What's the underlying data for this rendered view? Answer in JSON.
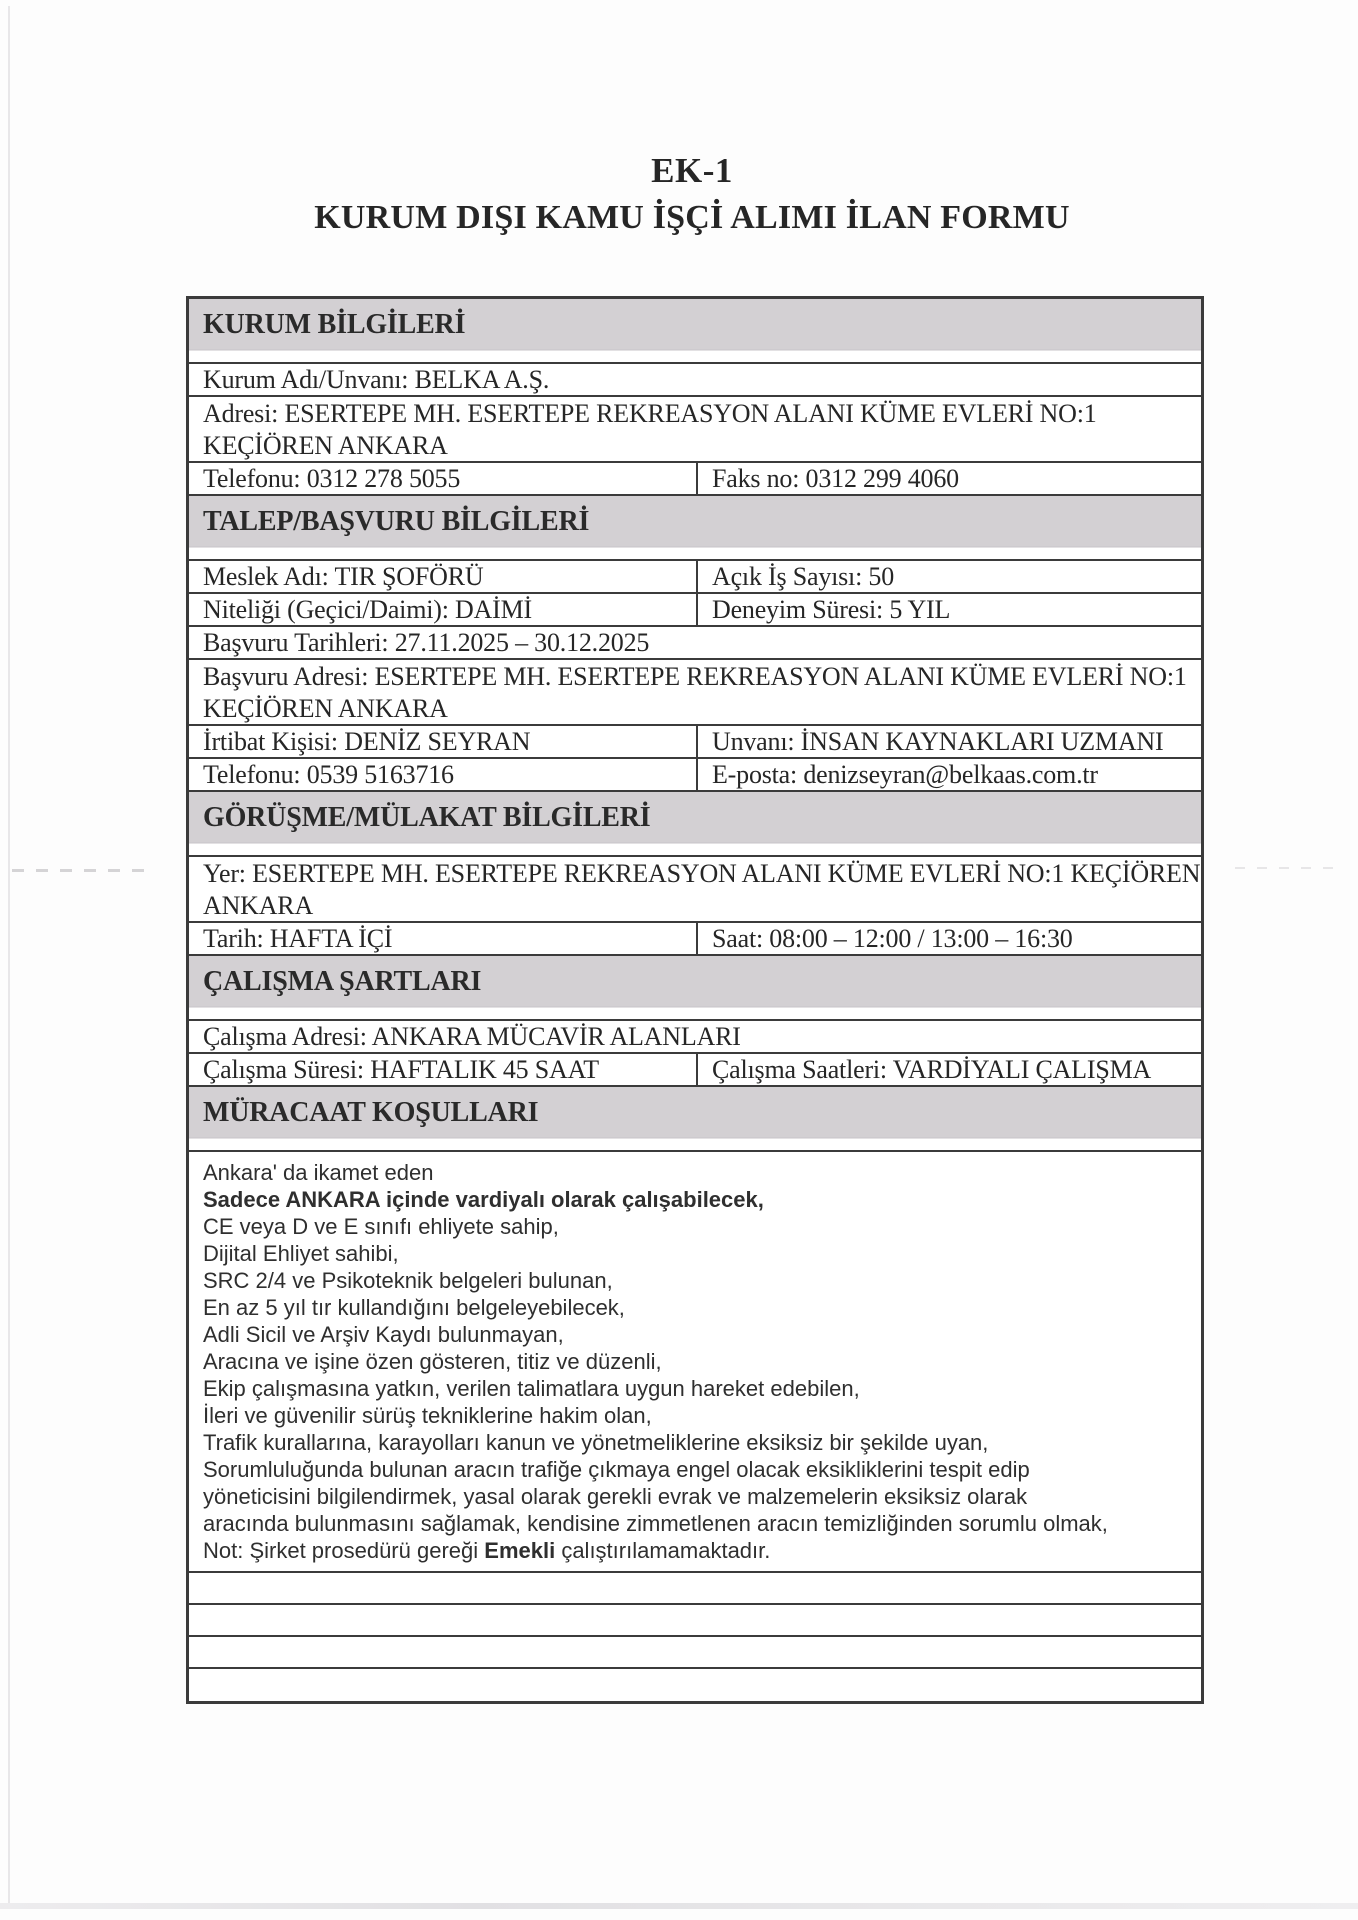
{
  "header": {
    "doc_label": "EK-1",
    "doc_title": "KURUM DIŞI KAMU İŞÇİ ALIMI İLAN FORMU"
  },
  "colors": {
    "header_bg": "#d3d0d3",
    "border": "#3b3b3b",
    "text": "#262626",
    "req_text": "#2f2f2f",
    "page_bg": "#fdfdfd"
  },
  "table": {
    "rows": [
      {
        "type": "header",
        "text": "KURUM BİLGİLERİ"
      },
      {
        "type": "single",
        "text": "Kurum Adı/Unvanı: BELKA A.Ş."
      },
      {
        "type": "single",
        "lines": 2,
        "line1": "Adresi: ESERTEPE MH. ESERTEPE REKREASYON ALANI KÜME EVLERİ NO:1",
        "line2": "KEÇİÖREN ANKARA"
      },
      {
        "type": "split",
        "left": "Telefonu: 0312 278 5055",
        "right": "Faks no: 0312 299 4060"
      },
      {
        "type": "header",
        "text": "TALEP/BAŞVURU BİLGİLERİ"
      },
      {
        "type": "split",
        "left": "Meslek Adı: TIR ŞOFÖRÜ",
        "right": "Açık İş Sayısı: 50"
      },
      {
        "type": "split",
        "left": "Niteliği (Geçici/Daimi): DAİMİ",
        "right": "Deneyim Süresi: 5 YIL"
      },
      {
        "type": "single",
        "text": "Başvuru Tarihleri: 27.11.2025 – 30.12.2025"
      },
      {
        "type": "single",
        "lines": 2,
        "line1": "Başvuru Adresi: ESERTEPE MH. ESERTEPE REKREASYON ALANI KÜME EVLERİ NO:1",
        "line2": "KEÇİÖREN ANKARA"
      },
      {
        "type": "split",
        "left": "İrtibat Kişisi: DENİZ SEYRAN",
        "right": "Unvanı: İNSAN KAYNAKLARI UZMANI"
      },
      {
        "type": "split",
        "left": "Telefonu: 0539 5163716",
        "right": "E-posta: denizseyran@belkaas.com.tr"
      },
      {
        "type": "header",
        "text": "GÖRÜŞME/MÜLAKAT BİLGİLERİ"
      },
      {
        "type": "single",
        "lines": 2,
        "line1": "Yer: ESERTEPE MH. ESERTEPE REKREASYON ALANI KÜME EVLERİ NO:1 KEÇİÖREN",
        "line2": "ANKARA"
      },
      {
        "type": "split",
        "left": "Tarih: HAFTA İÇİ",
        "right": "Saat: 08:00 – 12:00 / 13:00 – 16:30"
      },
      {
        "type": "header",
        "text": "ÇALIŞMA ŞARTLARI"
      },
      {
        "type": "single",
        "text": "Çalışma Adresi: ANKARA MÜCAVİR ALANLARI"
      },
      {
        "type": "split",
        "left": "Çalışma Süresi: HAFTALIK 45 SAAT",
        "right": "Çalışma Saatleri: VARDİYALI ÇALIŞMA"
      },
      {
        "type": "header",
        "text": "MÜRACAAT KOŞULLARI"
      },
      {
        "type": "requirements",
        "req_lines": [
          [
            {
              "t": "Ankara' da ikamet eden"
            }
          ],
          [
            {
              "t": "Sadece ANKARA içinde vardiyalı olarak çalışabilecek,",
              "b": true
            }
          ],
          [
            {
              "t": "CE veya D ve E sınıfı ehliyete sahip,"
            }
          ],
          [
            {
              "t": "Dijital Ehliyet sahibi,"
            }
          ],
          [
            {
              "t": "SRC 2/4 ve Psikoteknik belgeleri bulunan,"
            }
          ],
          [
            {
              "t": "En az 5 yıl tır kullandığını belgeleyebilecek,"
            }
          ],
          [
            {
              "t": "Adli Sicil ve Arşiv Kaydı bulunmayan,"
            }
          ],
          [
            {
              "t": "Aracına ve işine özen gösteren, titiz ve düzenli,"
            }
          ],
          [
            {
              "t": "Ekip çalışmasına yatkın, verilen talimatlara uygun hareket edebilen,"
            }
          ],
          [
            {
              "t": "İleri ve güvenilir sürüş tekniklerine hakim olan,"
            }
          ],
          [
            {
              "t": "Trafik kurallarına, karayolları kanun ve yönetmeliklerine eksiksiz bir şekilde uyan,"
            }
          ],
          [
            {
              "t": "Sorumluluğunda bulunan aracın trafiğe çıkmaya engel olacak eksikliklerini tespit edip"
            }
          ],
          [
            {
              "t": "yöneticisini bilgilendirmek, yasal olarak gerekli evrak ve malzemelerin eksiksiz olarak"
            }
          ],
          [
            {
              "t": "aracında bulunmasını sağlamak, kendisine zimmetlenen aracın temizliğinden sorumlu olmak,"
            }
          ],
          [
            {
              "t": "Not: Şirket prosedürü gereği "
            },
            {
              "t": "Emekli",
              "b": true
            },
            {
              "t": " çalıştırılamamaktadır."
            }
          ]
        ]
      },
      {
        "type": "empty"
      },
      {
        "type": "empty"
      },
      {
        "type": "empty"
      },
      {
        "type": "empty"
      }
    ]
  }
}
